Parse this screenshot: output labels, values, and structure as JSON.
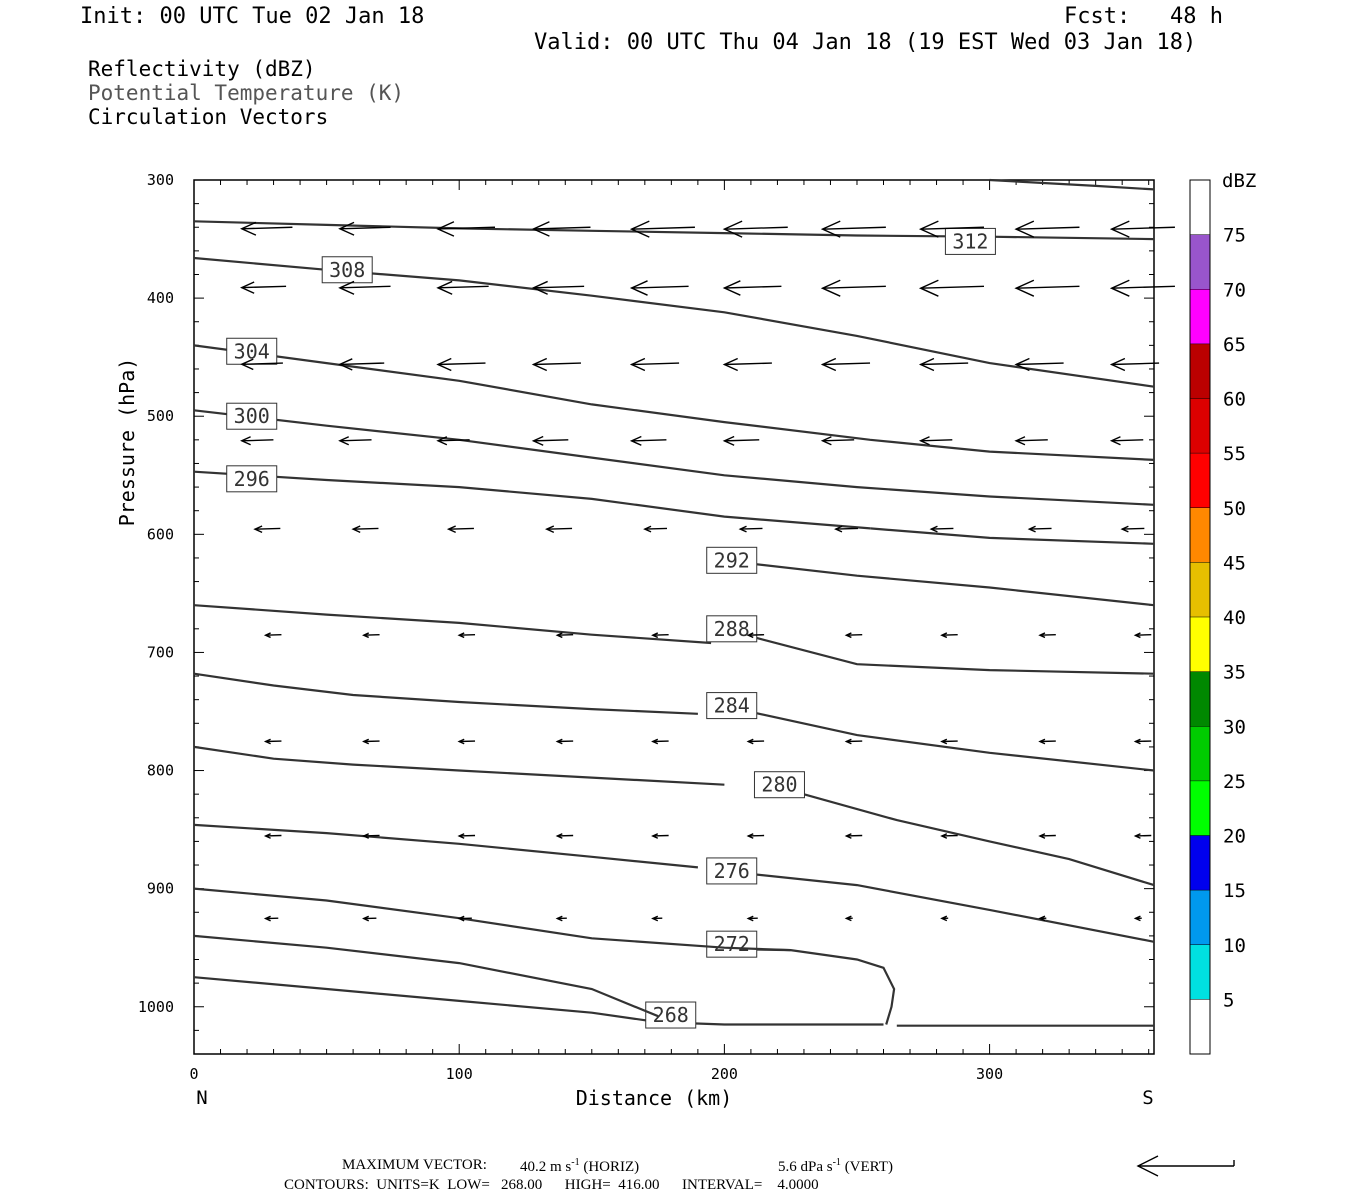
{
  "header": {
    "init": "Init: 00 UTC Tue 02 Jan 18",
    "fcst": "Fcst:   48 h",
    "valid": "Valid: 00 UTC Thu 04 Jan 18 (19 EST Wed 03 Jan 18)",
    "fields": [
      "Reflectivity (dBZ)",
      "Potential Temperature (K)",
      "Circulation Vectors"
    ]
  },
  "footer": {
    "max_vector_label": "MAXIMUM VECTOR:",
    "max_vector_horiz": "40.2 m s",
    "horiz_tag": "(HORIZ)",
    "max_vector_vert": "5.6 dPa s",
    "vert_tag": "(VERT)",
    "exponent": "-1",
    "contours": "CONTOURS:  UNITS=K  LOW=   268.00      HIGH=  416.00      INTERVAL=    4.0000"
  },
  "colorbar": {
    "unit": "dBZ",
    "levels": [
      5,
      10,
      15,
      20,
      25,
      30,
      35,
      40,
      45,
      50,
      55,
      60,
      65,
      70,
      75
    ],
    "colors": [
      "#00e0e0",
      "#0099ee",
      "#0000ee",
      "#00ff00",
      "#00cc00",
      "#008800",
      "#ffff00",
      "#e6bf00",
      "#ff8800",
      "#ff0000",
      "#dd0000",
      "#bb0000",
      "#ff00ff",
      "#9955cc",
      "#ffffff"
    ]
  },
  "chart_data": {
    "type": "line",
    "title": "",
    "xlabel": "Distance (km)",
    "ylabel": "Pressure (hPa)",
    "xlim": [
      0,
      362
    ],
    "ylim": [
      1040,
      300
    ],
    "x_ticks": [
      0,
      100,
      200,
      300
    ],
    "y_ticks": [
      300,
      400,
      500,
      600,
      700,
      800,
      900,
      1000
    ],
    "x_end_labels": {
      "left": "N",
      "right": "S"
    },
    "isentropes": [
      {
        "theta": 268,
        "label": "268",
        "label_at": [
          176,
          1007
        ],
        "points": [
          [
            0,
            975
          ],
          [
            50,
            985
          ],
          [
            100,
            995
          ],
          [
            150,
            1005
          ],
          [
            175,
            1013
          ],
          [
            200,
            1015
          ],
          [
            260,
            1015
          ]
        ]
      },
      {
        "theta": 268,
        "label": "",
        "label_at": null,
        "points": [
          [
            265,
            1016
          ],
          [
            362,
            1016
          ]
        ]
      },
      {
        "theta": 272,
        "label": "272",
        "label_at": [
          199,
          947
        ],
        "points": [
          [
            0,
            940
          ],
          [
            50,
            950
          ],
          [
            100,
            963
          ],
          [
            150,
            985
          ],
          [
            175,
            1008
          ]
        ],
        "closed_cell": [
          [
            199,
            951
          ],
          [
            225,
            952
          ],
          [
            250,
            960
          ],
          [
            260,
            967
          ],
          [
            264,
            985
          ],
          [
            263,
            1000
          ],
          [
            261,
            1015
          ]
        ]
      },
      {
        "theta": 276,
        "label": "276",
        "label_at": [
          199,
          885
        ],
        "points": [
          [
            0,
            900
          ],
          [
            50,
            910
          ],
          [
            100,
            925
          ],
          [
            150,
            942
          ],
          [
            200,
            950
          ],
          [
            225,
            952
          ]
        ],
        "extra": [
          [
            199,
            885
          ],
          [
            250,
            897
          ],
          [
            300,
            918
          ],
          [
            362,
            945
          ]
        ]
      },
      {
        "theta": 280,
        "label": "280",
        "label_at": [
          217,
          812
        ],
        "points": [
          [
            0,
            846
          ],
          [
            50,
            853
          ],
          [
            100,
            862
          ],
          [
            150,
            873
          ],
          [
            190,
            882
          ]
        ],
        "extra": [
          [
            217,
            812
          ],
          [
            265,
            842
          ],
          [
            300,
            860
          ],
          [
            330,
            875
          ],
          [
            362,
            897
          ]
        ]
      },
      {
        "theta": 284,
        "label": "284",
        "label_at": [
          199,
          745
        ],
        "points": [
          [
            0,
            780
          ],
          [
            30,
            790
          ],
          [
            60,
            795
          ],
          [
            100,
            800
          ],
          [
            150,
            806
          ],
          [
            200,
            812
          ]
        ],
        "extra": [
          [
            199,
            745
          ],
          [
            250,
            770
          ],
          [
            300,
            785
          ],
          [
            362,
            800
          ]
        ]
      },
      {
        "theta": 288,
        "label": "288",
        "label_at": [
          199,
          680
        ],
        "points": [
          [
            0,
            718
          ],
          [
            30,
            728
          ],
          [
            60,
            736
          ],
          [
            100,
            742
          ],
          [
            150,
            748
          ],
          [
            190,
            752
          ]
        ],
        "extra": [
          [
            199,
            680
          ],
          [
            250,
            710
          ],
          [
            300,
            715
          ],
          [
            362,
            718
          ]
        ]
      },
      {
        "theta": 292,
        "label": "292",
        "label_at": [
          199,
          622
        ],
        "points": [
          [
            0,
            660
          ],
          [
            50,
            668
          ],
          [
            100,
            675
          ],
          [
            150,
            685
          ],
          [
            195,
            692
          ]
        ],
        "extra": [
          [
            199,
            622
          ],
          [
            250,
            635
          ],
          [
            300,
            645
          ],
          [
            362,
            660
          ]
        ]
      },
      {
        "theta": 296,
        "label": "296",
        "label_at": [
          18,
          553
        ],
        "points": [
          [
            0,
            547
          ],
          [
            50,
            554
          ],
          [
            100,
            560
          ],
          [
            150,
            570
          ],
          [
            200,
            585
          ],
          [
            255,
            595
          ]
        ],
        "extra": [
          [
            255,
            595
          ],
          [
            300,
            603
          ],
          [
            362,
            608
          ]
        ]
      },
      {
        "theta": 300,
        "label": "300",
        "label_at": [
          18,
          500
        ],
        "points": [
          [
            0,
            495
          ],
          [
            50,
            508
          ],
          [
            100,
            520
          ],
          [
            150,
            535
          ],
          [
            200,
            550
          ],
          [
            250,
            560
          ],
          [
            300,
            568
          ],
          [
            362,
            575
          ]
        ]
      },
      {
        "theta": 304,
        "label": "304",
        "label_at": [
          18,
          445
        ],
        "points": [
          [
            0,
            440
          ],
          [
            50,
            455
          ],
          [
            100,
            470
          ],
          [
            150,
            490
          ],
          [
            200,
            505
          ],
          [
            255,
            520
          ],
          [
            300,
            530
          ],
          [
            362,
            537
          ]
        ]
      },
      {
        "theta": 308,
        "label": "308",
        "label_at": [
          54,
          376
        ],
        "points": [
          [
            0,
            366
          ],
          [
            50,
            376
          ],
          [
            100,
            385
          ],
          [
            150,
            398
          ],
          [
            200,
            412
          ],
          [
            250,
            432
          ],
          [
            300,
            455
          ],
          [
            362,
            475
          ]
        ]
      },
      {
        "theta": 312,
        "label": "312",
        "label_at": [
          289,
          352
        ],
        "points": [
          [
            0,
            335
          ],
          [
            50,
            338
          ],
          [
            100,
            341
          ],
          [
            150,
            343
          ],
          [
            200,
            345
          ],
          [
            250,
            347
          ],
          [
            300,
            348
          ],
          [
            362,
            350
          ]
        ]
      },
      {
        "theta": 316,
        "label": "",
        "label_at": null,
        "points": [
          [
            300,
            300
          ],
          [
            340,
            305
          ],
          [
            362,
            308
          ]
        ]
      }
    ],
    "vector_rows": [
      {
        "p": 340,
        "x": [
          18,
          55,
          92,
          128,
          165,
          200,
          237,
          274,
          310,
          346
        ],
        "len": [
          0.16,
          0.16,
          0.18,
          0.18,
          0.2,
          0.2,
          0.2,
          0.2,
          0.2,
          0.2
        ]
      },
      {
        "p": 390,
        "x": [
          18,
          55,
          92,
          128,
          165,
          200,
          237,
          274,
          310,
          346
        ],
        "len": [
          0.14,
          0.16,
          0.16,
          0.16,
          0.18,
          0.18,
          0.2,
          0.2,
          0.2,
          0.2
        ]
      },
      {
        "p": 455,
        "x": [
          18,
          55,
          92,
          128,
          165,
          200,
          237,
          274,
          310,
          346
        ],
        "len": [
          0.13,
          0.14,
          0.15,
          0.15,
          0.15,
          0.15,
          0.15,
          0.15,
          0.15,
          0.15
        ]
      },
      {
        "p": 520,
        "x": [
          18,
          55,
          92,
          128,
          165,
          200,
          237,
          274,
          310,
          346
        ],
        "len": [
          0.1,
          0.1,
          0.1,
          0.11,
          0.11,
          0.11,
          0.1,
          0.1,
          0.1,
          0.1
        ]
      },
      {
        "p": 595,
        "x": [
          23,
          60,
          96,
          133,
          170,
          206,
          242,
          278,
          315,
          350
        ],
        "len": [
          0.08,
          0.08,
          0.08,
          0.08,
          0.07,
          0.07,
          0.07,
          0.07,
          0.07,
          0.07
        ]
      },
      {
        "p": 685,
        "x": [
          27,
          64,
          100,
          137,
          173,
          209,
          246,
          282,
          319,
          355
        ],
        "len": [
          0.05,
          0.05,
          0.05,
          0.05,
          0.05,
          0.05,
          0.05,
          0.05,
          0.05,
          0.05
        ]
      },
      {
        "p": 775,
        "x": [
          27,
          64,
          100,
          137,
          173,
          209,
          246,
          282,
          319,
          355
        ],
        "len": [
          0.05,
          0.05,
          0.05,
          0.05,
          0.05,
          0.05,
          0.05,
          0.05,
          0.05,
          0.05
        ]
      },
      {
        "p": 855,
        "x": [
          27,
          64,
          100,
          137,
          173,
          209,
          246,
          282,
          319,
          355
        ],
        "len": [
          0.05,
          0.05,
          0.05,
          0.05,
          0.05,
          0.05,
          0.05,
          0.05,
          0.05,
          0.05
        ]
      },
      {
        "p": 925,
        "x": [
          27,
          64,
          100,
          137,
          173,
          209,
          246,
          282,
          319,
          355
        ],
        "len": [
          0.04,
          0.04,
          0.04,
          0.03,
          0.03,
          0.03,
          0.02,
          0.02,
          0.02,
          0.02
        ]
      }
    ],
    "reference_vector": "40.2 m s-1 (HORIZ), 5.6 dPa s-1 (VERT)"
  }
}
